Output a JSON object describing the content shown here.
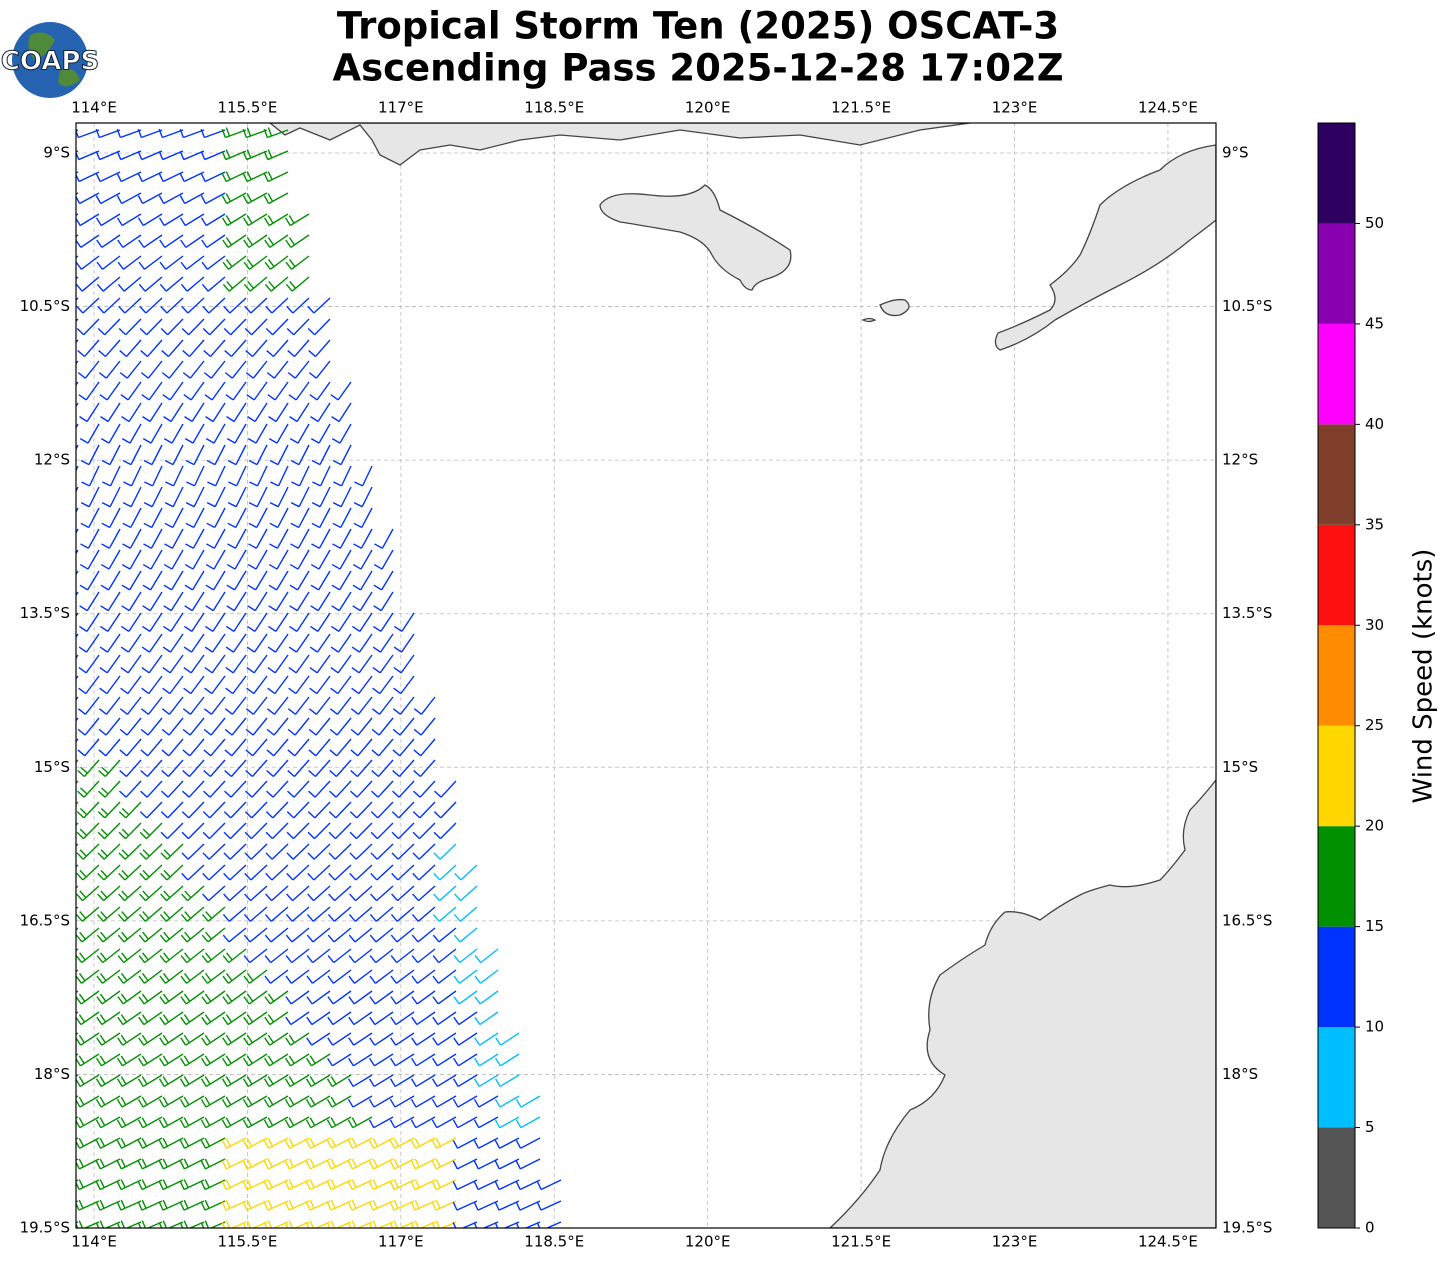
{
  "chart_data": {
    "type": "map",
    "title": "Tropical Storm Ten (2025) OSCAT-3",
    "subtitle": "Ascending Pass 2025-12-28 17:02Z",
    "logo": "COAPS",
    "xlim": [
      113.824,
      124.97
    ],
    "ylim": [
      -19.5,
      -8.707
    ],
    "xticks": [
      {
        "value": 114,
        "label": "114°E"
      },
      {
        "value": 115.5,
        "label": "115.5°E"
      },
      {
        "value": 117,
        "label": "117°E"
      },
      {
        "value": 118.5,
        "label": "118.5°E"
      },
      {
        "value": 120,
        "label": "120°E"
      },
      {
        "value": 121.5,
        "label": "121.5°E"
      },
      {
        "value": 123,
        "label": "123°E"
      },
      {
        "value": 124.5,
        "label": "124.5°E"
      }
    ],
    "yticks": [
      {
        "value": -9,
        "label": "9°S"
      },
      {
        "value": -10.5,
        "label": "10.5°S"
      },
      {
        "value": -12,
        "label": "12°S"
      },
      {
        "value": -13.5,
        "label": "13.5°S"
      },
      {
        "value": -15,
        "label": "15°S"
      },
      {
        "value": -16.5,
        "label": "16.5°S"
      },
      {
        "value": -18,
        "label": "18°S"
      },
      {
        "value": -19.5,
        "label": "19.5°S"
      }
    ],
    "grid": true,
    "colorbar": {
      "label": "Wind Speed (knots)",
      "bounds": [
        0,
        5,
        10,
        15,
        20,
        25,
        30,
        35,
        40,
        45,
        50,
        55
      ],
      "ticks": [
        0,
        5,
        10,
        15,
        20,
        25,
        30,
        35,
        40,
        45,
        50
      ],
      "colors": [
        "#555555",
        "#00bfff",
        "#0033ff",
        "#009000",
        "#ffd700",
        "#ff8c00",
        "#ff1010",
        "#803f2a",
        "#ff00ff",
        "#8800b0",
        "#2e0060"
      ]
    }
  }
}
